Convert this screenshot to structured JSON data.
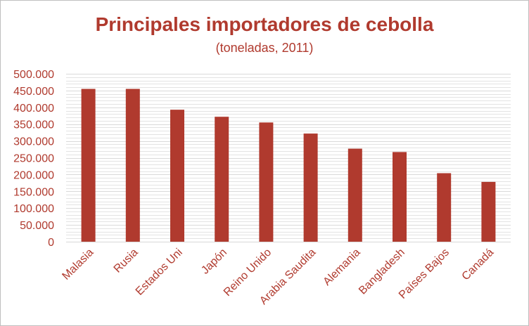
{
  "chart_data": {
    "type": "bar",
    "title": "Principales importadores de cebolla",
    "subtitle": "(toneladas, 2011)",
    "xlabel": "",
    "ylabel": "",
    "categories": [
      "Malasia",
      "Rusia",
      "Estados Uni",
      "Japón",
      "Reino Unido",
      "Arabia Saudita",
      "Alemania",
      "Bangladesh",
      "Países Bajos",
      "Canadá"
    ],
    "values": [
      455000,
      455000,
      393000,
      372000,
      355000,
      322000,
      277000,
      267000,
      204000,
      178000
    ],
    "ylim": [
      0,
      500000
    ],
    "yticks": [
      0,
      50000,
      100000,
      150000,
      200000,
      250000,
      300000,
      350000,
      400000,
      450000,
      500000
    ],
    "ytick_labels": [
      "0",
      "50.000",
      "100.000",
      "150.000",
      "200.000",
      "250.000",
      "300.000",
      "350.000",
      "400.000",
      "450.000",
      "500.000"
    ],
    "grid": true,
    "legend": "none",
    "colors": {
      "bar": "#b03a2e",
      "text": "#b03a2e",
      "grid": "#d9d9d9"
    }
  }
}
